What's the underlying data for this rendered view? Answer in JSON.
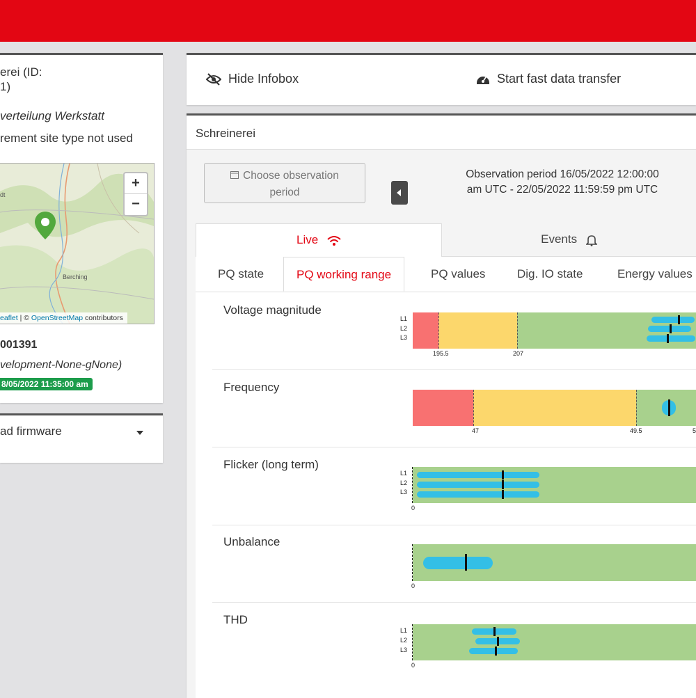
{
  "colors": {
    "brand": "#e30613",
    "active_tab": "#e30613",
    "badge": "#1c9c4b",
    "range_red": "#f87171",
    "range_yellow": "#fcd76c",
    "range_green": "#a8d18d",
    "value_marker": "#33bfe6"
  },
  "left_card": {
    "title_line1": "erei (ID:",
    "title_line2": "1)",
    "location": "verteilung Werkstatt",
    "site_type": "rement site type not used",
    "map": {
      "zoom_in": "+",
      "zoom_out": "−",
      "place_label_1": "Berching",
      "place_label_2": "dt",
      "attribution_leaflet": "eaflet",
      "attribution_sep": " | © ",
      "attribution_osm": "OpenStreetMap",
      "attribution_suffix": " contributors"
    },
    "device_id": "001391",
    "firmware_tag": "velopment-None-gNone)",
    "last_seen_badge": "8/05/2022 11:35:00 am"
  },
  "firmware_card": {
    "label": "ad firmware"
  },
  "toolbar": {
    "hide_infobox": "Hide Infobox",
    "fast_transfer": "Start fast data transfer"
  },
  "main": {
    "title": "Schreinerei",
    "choose_period_line1": "Choose observation",
    "choose_period_line2": "period",
    "observation_line1": "Observation period 16/05/2022 12:00:00",
    "observation_line2": "am UTC - 22/05/2022 11:59:59 pm UTC",
    "tabs": {
      "live": "Live",
      "events": "Events"
    },
    "subtabs": [
      "PQ state",
      "PQ working range",
      "PQ values",
      "Dig. IO state",
      "Energy values"
    ],
    "active_subtab": "PQ working range"
  },
  "metrics": {
    "voltage": {
      "label": "Voltage magnitude",
      "phases": [
        "L1",
        "L2",
        "L3"
      ],
      "ticks": [
        "195.5",
        "207"
      ]
    },
    "frequency": {
      "label": "Frequency",
      "ticks": [
        "47",
        "49.5",
        "5"
      ]
    },
    "flicker": {
      "label": "Flicker (long term)",
      "phases": [
        "L1",
        "L2",
        "L3"
      ],
      "ticks": [
        "0"
      ]
    },
    "unbalance": {
      "label": "Unbalance",
      "ticks": [
        "0"
      ]
    },
    "thd": {
      "label": "THD",
      "phases": [
        "L1",
        "L2",
        "L3"
      ],
      "ticks": [
        "0"
      ]
    }
  }
}
